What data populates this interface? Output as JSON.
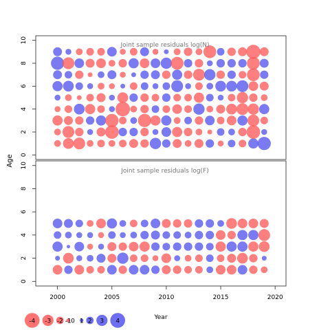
{
  "chart_data": [
    {
      "type": "scatter",
      "title": "Joint sample residuals log(N)",
      "xlabel": "",
      "ylabel": "Age",
      "xlim": [
        1998,
        2021
      ],
      "ylim": [
        -0.4,
        10.4
      ],
      "yticks": [
        0,
        2,
        4,
        6,
        8,
        10
      ],
      "years": [
        2000,
        2001,
        2002,
        2003,
        2004,
        2005,
        2006,
        2007,
        2008,
        2009,
        2010,
        2011,
        2012,
        2013,
        2014,
        2015,
        2016,
        2017,
        2018,
        2019
      ],
      "ages": [
        1,
        2,
        3,
        4,
        5,
        6,
        7,
        8,
        9
      ],
      "encoding": "bubble size = |residual|, red = negative, blue = positive",
      "residuals": [
        [
          -0.4,
          -1.0,
          -1.2,
          -0.4,
          -0.5,
          -0.4,
          -0.5,
          -0.7,
          -0.6,
          1.1,
          0.6,
          -0.7,
          -0.4,
          -0.7,
          0.6,
          -0.3,
          0.5,
          -0.5,
          0.9,
          1.5
        ],
        [
          -0.4,
          -1.2,
          -0.6,
          0.3,
          -0.7,
          -1.6,
          0.6,
          0.6,
          -0.6,
          0.3,
          0.8,
          -0.9,
          -0.6,
          -0.4,
          -0.2,
          0.5,
          0.4,
          -0.6,
          -1.6,
          0.3
        ],
        [
          -0.9,
          -0.7,
          -0.6,
          0.6,
          0.9,
          -1.5,
          -0.5,
          0.4,
          -1.5,
          -0.9,
          0.9,
          -0.4,
          0.5,
          -0.6,
          0.8,
          -0.5,
          -0.8,
          0.9,
          -1.2,
          -0.5
        ],
        [
          -0.3,
          -0.5,
          1.0,
          -0.9,
          -0.5,
          0.3,
          -1.8,
          -0.4,
          -0.6,
          0.5,
          -0.5,
          -0.8,
          -0.5,
          1.1,
          -0.4,
          -0.7,
          -1.0,
          -1.2,
          -1.1,
          0.9
        ],
        [
          0.3,
          -0.4,
          -0.2,
          -0.5,
          -0.7,
          0.3,
          -1.0,
          0.6,
          -0.6,
          -0.5,
          0.6,
          -0.5,
          -0.5,
          -0.9,
          0.5,
          0.3,
          -0.5,
          -1.1,
          -0.6,
          -0.4
        ],
        [
          0.9,
          1.0,
          0.5,
          0.3,
          -0.4,
          -0.3,
          0.2,
          -0.5,
          0.5,
          0.3,
          0.5,
          1.2,
          0.3,
          -0.5,
          0.4,
          1.0,
          1.0,
          1.2,
          -0.8,
          -0.7
        ],
        [
          0.7,
          0.5,
          -0.6,
          -0.2,
          0.4,
          0.7,
          -0.3,
          0.2,
          0.6,
          0.7,
          -0.6,
          0.9,
          -0.6,
          -1.2,
          1.1,
          -0.6,
          0.6,
          -0.5,
          -1.4,
          0.6
        ],
        [
          1.5,
          -1.2,
          0.8,
          -0.7,
          -0.8,
          -0.4,
          -0.6,
          0.9,
          -0.8,
          0.8,
          1.1,
          -1.4,
          0.6,
          -0.6,
          0.3,
          0.6,
          0.6,
          0.6,
          -1.4,
          0.7
        ],
        [
          0.7,
          0.3,
          -0.4,
          -0.5,
          -0.5,
          0.8,
          -0.3,
          -0.5,
          0.7,
          -0.3,
          0.2,
          -0.4,
          -0.6,
          -0.4,
          -1.4,
          0.5,
          -0.6,
          -0.7,
          -1.7,
          -0.7
        ]
      ]
    },
    {
      "type": "scatter",
      "title": "Joint sample residuals log(F)",
      "xlabel": "Year",
      "ylabel": "Age",
      "xlim": [
        1998,
        2021
      ],
      "ylim": [
        -0.4,
        10.4
      ],
      "yticks": [
        0,
        2,
        4,
        6,
        8,
        10
      ],
      "xticks": [
        2000,
        2005,
        2010,
        2015,
        2020
      ],
      "years": [
        2000,
        2001,
        2002,
        2003,
        2004,
        2005,
        2006,
        2007,
        2008,
        2009,
        2010,
        2011,
        2012,
        2013,
        2014,
        2015,
        2016,
        2017,
        2018,
        2019
      ],
      "ages": [
        1,
        2,
        3,
        4,
        5
      ],
      "encoding": "bubble size = |residual|, red = negative, blue = positive",
      "residuals": [
        [
          -0.8,
          0.6,
          -0.8,
          -0.5,
          -0.5,
          0.8,
          -0.6,
          0.8,
          0.8,
          0.6,
          -0.7,
          -0.6,
          -0.5,
          -0.5,
          0.4,
          -0.8,
          -0.8,
          0.8,
          -0.6,
          -0.4
        ],
        [
          0.2,
          -1.0,
          0.3,
          0.4,
          0.7,
          -0.7,
          1.1,
          -0.5,
          -0.5,
          -0.3,
          -0.8,
          0.3,
          -0.4,
          -0.5,
          0.5,
          -0.5,
          -0.7,
          -1.0,
          -0.6,
          0.2
        ],
        [
          0.9,
          0.1,
          0.8,
          -0.3,
          0.3,
          -0.7,
          -0.6,
          -0.8,
          -0.9,
          0.6,
          0.5,
          0.6,
          0.6,
          0.6,
          0.5,
          -0.9,
          0.9,
          0.9,
          -0.9,
          -1.0
        ],
        [
          0.5,
          0.4,
          0.3,
          0.3,
          -0.3,
          0.5,
          0.3,
          0.4,
          0.6,
          0.7,
          0.5,
          0.5,
          0.4,
          0.6,
          0.6,
          -0.8,
          -0.6,
          0.9,
          0.9,
          -1.2
        ],
        [
          0.8,
          0.7,
          0.5,
          -0.4,
          -0.8,
          0.9,
          0.4,
          -0.5,
          0.5,
          0.8,
          -0.7,
          -0.6,
          -0.6,
          0.6,
          0.6,
          0.4,
          -1.0,
          -0.8,
          -0.8,
          -0.7
        ]
      ]
    }
  ],
  "legend": {
    "labels": [
      "-4",
      "-3",
      "-2",
      "-1",
      "0",
      "1",
      "2",
      "3",
      "4"
    ],
    "title": "Year"
  },
  "colors": {
    "negative": "#ff5a5a",
    "positive": "#5555ee",
    "frame": "#222222"
  }
}
